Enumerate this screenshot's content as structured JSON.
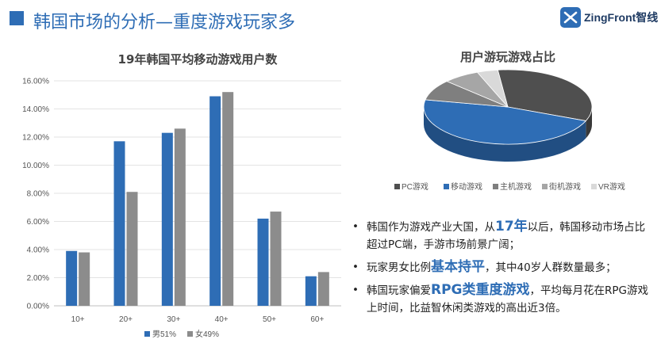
{
  "header": {
    "title": "韩国市场的分析—重度游戏玩家多",
    "logo_text": "ZingFront智线",
    "accent": "#2e6db5"
  },
  "chart_data": [
    {
      "type": "bar",
      "title": "19年韩国平均移动游戏用户数",
      "categories": [
        "10+",
        "20+",
        "30+",
        "40+",
        "50+",
        "60+"
      ],
      "series": [
        {
          "name": "男51%",
          "values": [
            3.9,
            11.7,
            12.3,
            14.9,
            6.2,
            2.1
          ],
          "color": "#2e6db5"
        },
        {
          "name": "女49%",
          "values": [
            3.8,
            8.1,
            12.6,
            15.2,
            6.7,
            2.4
          ],
          "color": "#8c8c8c"
        }
      ],
      "ylim": [
        0,
        16
      ],
      "yticks": [
        "0.00%",
        "2.00%",
        "4.00%",
        "6.00%",
        "8.00%",
        "10.00%",
        "12.00%",
        "14.00%",
        "16.00%"
      ],
      "grid": true,
      "legend": "bottom"
    },
    {
      "type": "pie",
      "title": "用户游玩游戏占比",
      "labels": [
        "PC游戏",
        "移动游戏",
        "主机游戏",
        "街机游戏",
        "VR游戏"
      ],
      "values": [
        33,
        47,
        9,
        7,
        4
      ],
      "colors": [
        "#4f4f4f",
        "#2e6db5",
        "#7f7f7f",
        "#a6a6a6",
        "#d9d9d9"
      ],
      "legend": "bottom"
    }
  ],
  "bullets": [
    [
      "韩国作为游戏产业大国，从",
      "17年",
      "以后，韩国移动市场占比超过PC端，手游市场前景广阔；"
    ],
    [
      "玩家男女比例",
      "基本持平",
      "，其中40岁人群数量最多；"
    ],
    [
      "韩国玩家偏爱",
      "RPG类重度游戏",
      "，平均每月花在RPG游戏上时间，比益智休闲类游戏的高出近3倍。"
    ]
  ]
}
